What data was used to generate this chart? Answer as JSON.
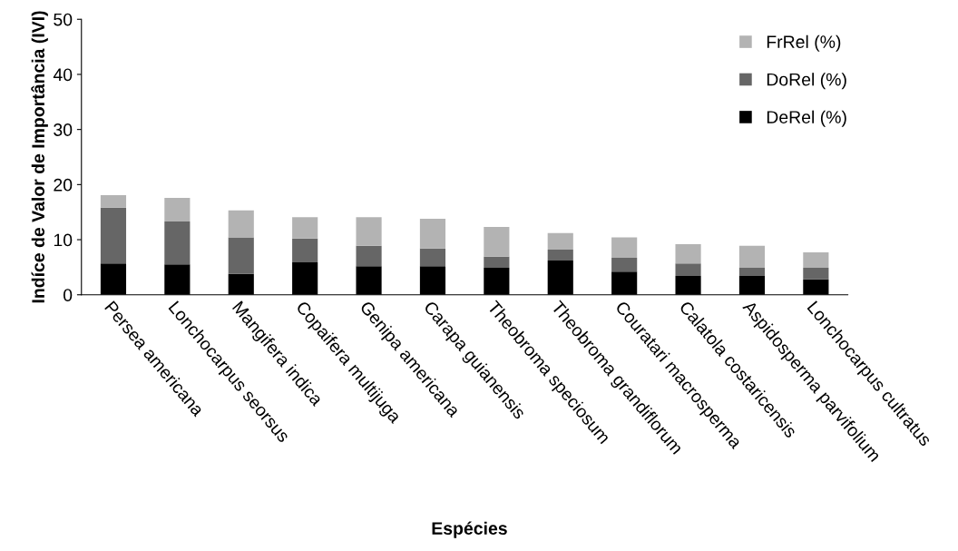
{
  "chart_data": {
    "type": "bar",
    "stacked": true,
    "xlabel": "Espécies",
    "ylabel": "Indíce de Valor de Importância (IVI)",
    "categories": [
      "Persea americana",
      "Lonchocarpus seorsus",
      "Mangifera indica",
      "Copaifera multijuga",
      "Genipa americana",
      "Carapa guianensis",
      "Theobroma speciosum",
      "Theobroma grandiflorum",
      "Couratari macrosperma",
      "Calatola costaricensis",
      "Aspidosperma parvifolium",
      "Lonchocarpus cultratus"
    ],
    "series": [
      {
        "name": "DeRel (%)",
        "color": "#000000",
        "values": [
          5.7,
          5.5,
          3.8,
          5.9,
          5.2,
          5.2,
          4.9,
          6.2,
          4.2,
          3.4,
          3.4,
          2.8
        ]
      },
      {
        "name": "DoRel (%)",
        "color": "#666666",
        "values": [
          10.1,
          7.8,
          6.6,
          4.3,
          3.7,
          3.2,
          2.0,
          2.0,
          2.5,
          2.3,
          1.5,
          2.1
        ]
      },
      {
        "name": "FrRel (%)",
        "color": "#b3b3b3",
        "values": [
          2.3,
          4.3,
          4.9,
          3.9,
          5.2,
          5.4,
          5.4,
          3.0,
          3.7,
          3.5,
          4.0,
          2.8
        ]
      }
    ],
    "ylim": [
      0,
      50
    ],
    "yticks": [
      0,
      10,
      20,
      30,
      40,
      50
    ],
    "grid": false,
    "legend": "top right"
  }
}
